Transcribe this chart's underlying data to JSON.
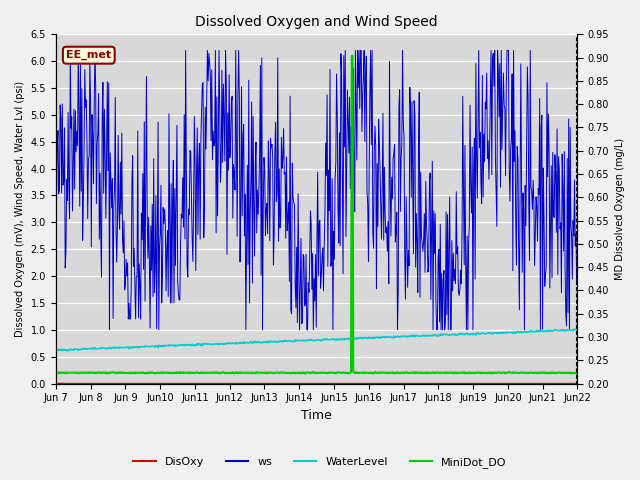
{
  "title": "Dissolved Oxygen and Wind Speed",
  "xlabel": "Time",
  "ylabel_left": "Dissolved Oxygen (mV), Wind Speed, Water Lvl (psi)",
  "ylabel_right": "MD Dissolved Oxygen (mg/L)",
  "annotation": "EE_met",
  "ylim_left": [
    0.0,
    6.5
  ],
  "ylim_right": [
    0.2,
    0.95
  ],
  "yticks_left": [
    0.0,
    0.5,
    1.0,
    1.5,
    2.0,
    2.5,
    3.0,
    3.5,
    4.0,
    4.5,
    5.0,
    5.5,
    6.0,
    6.5
  ],
  "yticks_right": [
    0.2,
    0.25,
    0.3,
    0.35,
    0.4,
    0.45,
    0.5,
    0.55,
    0.6,
    0.65,
    0.7,
    0.75,
    0.8,
    0.85,
    0.9,
    0.95
  ],
  "colors": {
    "DisOxy": "#cc0000",
    "ws": "#0000cc",
    "WaterLevel": "#00cccc",
    "MiniDot_DO": "#00cc00"
  },
  "legend_labels": [
    "DisOxy",
    "ws",
    "WaterLevel",
    "MiniDot_DO"
  ],
  "plot_bg": "#d8d8d8",
  "fig_bg": "#f0f0f0",
  "grid_color": "#ffffff",
  "xtick_labels": [
    "Jun 7",
    "Jun 8",
    "Jun 9",
    "Jun 10",
    "Jun 11",
    "Jun 12",
    "Jun 13",
    "Jun 14",
    "Jun 15",
    "Jun 16",
    "Jun 17",
    "Jun 18",
    "Jun 19",
    "Jun 20",
    "Jun 21",
    "Jun 22"
  ],
  "n_days": 15,
  "seed": 42
}
